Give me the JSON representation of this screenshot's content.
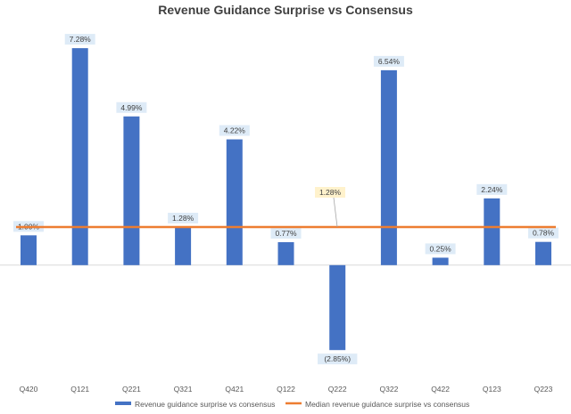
{
  "chart_data": {
    "type": "bar",
    "title": "Revenue Guidance Surprise vs Consensus",
    "categories": [
      "Q420",
      "Q121",
      "Q221",
      "Q321",
      "Q421",
      "Q122",
      "Q222",
      "Q322",
      "Q422",
      "Q123",
      "Q223"
    ],
    "series": [
      {
        "name": "Revenue guidance surprise vs consensus",
        "values": [
          1.0,
          7.28,
          4.99,
          1.28,
          4.22,
          0.77,
          -2.85,
          6.54,
          0.25,
          2.24,
          0.78
        ],
        "labels": [
          "1.00%",
          "7.28%",
          "4.99%",
          "1.28%",
          "4.22%",
          "0.77%",
          "(2.85%)",
          "6.54%",
          "0.25%",
          "2.24%",
          "0.78%"
        ],
        "color": "#4472C4",
        "chart_kind": "bar"
      },
      {
        "name": "Median revenue guidance surprise vs consensus",
        "value": 1.28,
        "label": "1.28%",
        "color": "#ED7D31",
        "chart_kind": "line"
      }
    ],
    "ylim": [
      -3.8,
      8.0
    ],
    "grid": false,
    "legend": "bottom",
    "data_label_background": "#DEEBF7",
    "median_label_background": "#FFF2CC"
  }
}
